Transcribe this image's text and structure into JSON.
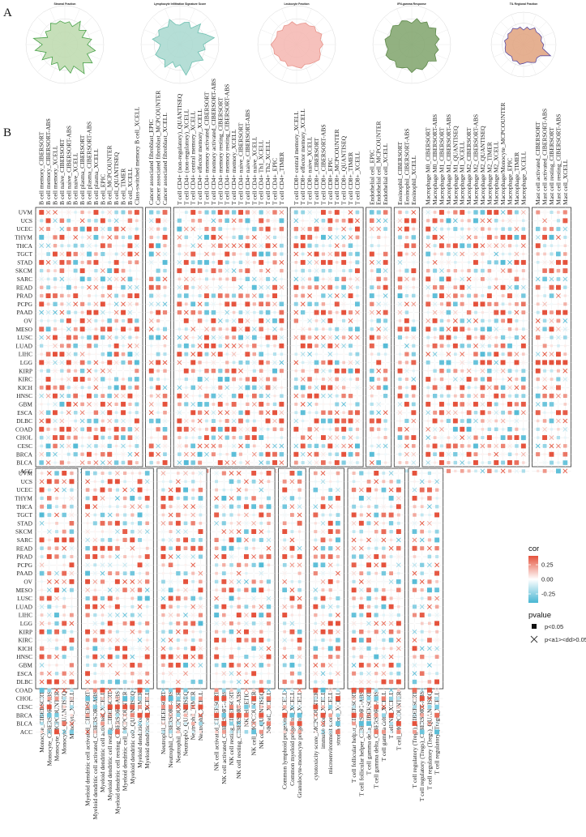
{
  "panel_labels": {
    "a": "A",
    "b": "B"
  },
  "radar_charts": [
    {
      "title": "Stromal Fraction",
      "fill": "#bcd9ad",
      "stroke": "#4aa34a",
      "values": [
        0.55,
        0.6,
        0.5,
        0.72,
        0.52,
        0.66,
        0.48,
        0.7,
        0.58,
        0.8,
        0.62,
        0.85,
        0.66,
        0.9,
        0.6,
        0.75,
        0.55,
        0.68,
        0.5,
        0.62,
        0.45,
        0.7,
        0.52,
        0.78,
        0.58,
        0.82,
        0.48,
        0.6,
        0.52,
        0.66,
        0.58,
        0.62
      ]
    },
    {
      "title": "Lymphocyte Infiltration Signature Score",
      "fill": "#a8d8cf",
      "stroke": "#6cbfb0",
      "values": [
        0.5,
        0.58,
        0.62,
        0.5,
        0.75,
        0.55,
        0.7,
        0.9,
        0.6,
        0.66,
        0.5,
        0.72,
        0.6,
        0.55,
        0.66,
        0.8,
        0.52,
        0.6,
        0.48,
        0.7,
        0.55,
        0.62,
        0.68,
        0.55,
        0.5,
        0.72,
        0.58,
        0.66,
        0.6,
        0.55,
        0.7,
        0.52
      ]
    },
    {
      "title": "Leukocyte Fraction",
      "fill": "#f4b6b0",
      "stroke": "#e8938a",
      "values": [
        0.5,
        0.55,
        0.6,
        0.58,
        0.65,
        0.6,
        0.7,
        0.62,
        0.68,
        0.6,
        0.66,
        0.7,
        0.64,
        0.6,
        0.55,
        0.62,
        0.58,
        0.55,
        0.6,
        0.52,
        0.58,
        0.55,
        0.62,
        0.6,
        0.66,
        0.58,
        0.55,
        0.6,
        0.52,
        0.58,
        0.55,
        0.6
      ]
    },
    {
      "title": "IFN-gamma Response",
      "fill": "#7fa36b",
      "stroke": "#5e8a4b",
      "values": [
        0.55,
        0.68,
        0.6,
        0.7,
        0.62,
        0.75,
        0.66,
        0.72,
        0.6,
        0.7,
        0.64,
        0.76,
        0.6,
        0.66,
        0.7,
        0.62,
        0.72,
        0.6,
        0.65,
        0.7,
        0.6,
        0.68,
        0.72,
        0.62,
        0.66,
        0.7,
        0.6,
        0.64,
        0.68,
        0.6,
        0.66,
        0.62
      ]
    },
    {
      "title": "TIL Regional Fraction",
      "fill": "#e0a27e",
      "stroke": "#5a4aa0",
      "values": [
        0.45,
        0.55,
        0.5,
        0.62,
        0.55,
        0.58,
        0.6,
        0.55,
        0.62,
        0.6,
        0.9,
        0.62,
        0.58,
        0.66,
        0.6,
        0.55,
        0.58,
        0.62,
        0.55,
        0.6,
        0.52,
        0.56,
        0.6,
        0.58,
        0.55,
        0.6,
        0.52,
        0.58,
        0.55,
        0.6,
        0.52,
        0.55
      ]
    }
  ],
  "chart_data": {
    "type": "heatmap",
    "title": "",
    "rows": [
      "UVM",
      "UCS",
      "UCEC",
      "THYM",
      "THCA",
      "TGCT",
      "STAD",
      "SKCM",
      "SARC",
      "READ",
      "PRAD",
      "PCPG",
      "PAAD",
      "OV",
      "MESO",
      "LUSC",
      "LUAD",
      "LIHC",
      "LGG",
      "KIRP",
      "KIRC",
      "KICH",
      "HNSC",
      "GBM",
      "ESCA",
      "DLBC",
      "COAD",
      "CHOL",
      "CESC",
      "BRCA",
      "BLCA",
      "ACC"
    ],
    "rows_bottom": [
      "UVM",
      "UCS",
      "UCEC",
      "THYM",
      "THCA",
      "TGCT",
      "STAD",
      "SKCM",
      "SARC",
      "READ",
      "PRAD",
      "PCPG",
      "PAAD",
      "OV",
      "MESO",
      "LUSC",
      "LUAD",
      "LIHC",
      "LGG",
      "KIRP",
      "KIRC",
      "KICH",
      "HNSC",
      "GBM",
      "ESCA",
      "DLBC",
      "COAD",
      "CHOL",
      "CESC",
      "BRCA",
      "BLCA",
      "ACC"
    ],
    "top_groups": [
      [
        "B cell memory_CIBERSORT",
        "B cell memory_CIBERSORT-ABS",
        "B cell memory_XCELL",
        "B cell naive_CIBERSORT",
        "B cell naive_CIBERSORT-ABS",
        "B cell naive_XCELL",
        "B cell plasma_CIBERSORT",
        "B cell plasma_CIBERSORT-ABS",
        "B cell plasma_XCELL",
        "B cell_EPIC",
        "B cell_MCPCOUNTER",
        "B cell_QUANTISEQ",
        "B cell_TIMER",
        "B cell_XCELL",
        "Class-switched memory B cell_XCELL"
      ],
      [
        "Cancer associated fibroblast_EPIC",
        "Cancer associated fibroblast_MCPCOUNTER",
        "Cancer associated fibroblast_XCELL"
      ],
      [
        "T cell CD4+ (non-regulatory)_QUANTISEQ",
        "T cell CD4+ (non-regulatory)_XCELL",
        "T cell CD4+ central memory_XCELL",
        "T cell CD4+ effector memory_XCELL",
        "T cell CD4+ memory activated_CIBERSORT",
        "T cell CD4+ memory activated_CIBERSORT-ABS",
        "T cell CD4+ memory resting_CIBERSORT",
        "T cell CD4+ memory resting_CIBERSORT-ABS",
        "T cell CD4+ memory_XCELL",
        "T cell CD4+ naive_CIBERSORT",
        "T cell CD4+ naive_CIBERSORT-ABS",
        "T cell CD4+ naive_XCELL",
        "T cell CD4+ Th1_XCELL",
        "T cell CD4+ Th2_XCELL",
        "T cell CD4+_EPIC",
        "T cell CD4+_TIMER"
      ],
      [
        "T cell CD8+ central memory_XCELL",
        "T cell CD8+ effector memory_XCELL",
        "T cell CD8+ naive_XCELL",
        "T cell CD8+_CIBERSORT",
        "T cell CD8+_CIBERSORT-ABS",
        "T cell CD8+_EPIC",
        "T cell CD8+_MCPCOUNTER",
        "T cell CD8+_QUANTISEQ",
        "T cell CD8+_TIMER",
        "T cell CD8+_XCELL"
      ],
      [
        "Endothelial cell_EPIC",
        "Endothelial cell_MCPCOUNTER",
        "Endothelial cell_XCELL"
      ],
      [
        "Eosinophil_CIBERSORT",
        "Eosinophil_CIBERSORT-ABS",
        "Eosinophil_XCELL"
      ],
      [
        "Macrophage M0_CIBERSORT",
        "Macrophage M0_CIBERSORT-ABS",
        "Macrophage M1_CIBERSORT",
        "Macrophage M1_CIBERSORT-ABS",
        "Macrophage M1_QUANTISEQ",
        "Macrophage M1_XCELL",
        "Macrophage M2_CIBERSORT",
        "Macrophage M2_CIBERSORT-ABS",
        "Macrophage M2_QUANTISEQ",
        "Macrophage M2_TIMER",
        "Macrophage M2_XCELL",
        "Macrophage/Monocyte_MCPCOUNTER",
        "Macrophage_EPIC",
        "Macrophage_TIMER",
        "Macrophage_XCELL"
      ],
      [
        "Mast cell activated_CIBERSORT",
        "Mast cell activated_CIBERSORT-ABS",
        "Mast cell resting_CIBERSORT",
        "Mast cell resting_CIBERSORT-ABS",
        "Mast cell_XCELL"
      ]
    ],
    "bottom_groups": [
      [
        "Monocyte_CIBERSORT",
        "Monocyte_CIBERSORT-ABS",
        "Monocyte_MCPCOUNTER",
        "Monocyte_QUANTISEQ",
        "Monocyte_XCELL"
      ],
      [
        "Myeloid dendritic cell activated_CIBERSORT",
        "Myeloid dendritic cell activated_CIBERSORT-ABS",
        "Myeloid dendritic cell activated_XCELL",
        "Myeloid dendritic cell resting_CIBERSORT",
        "Myeloid dendritic cell resting_CIBERSORT-ABS",
        "Myeloid dendritic cell_MCPCOUNTER",
        "Myeloid dendritic cell_QUANTISEQ",
        "Myeloid dendritic cell_TIMER",
        "Myeloid dendritic cell_XCELL"
      ],
      [
        "Neutrophil_CIBERSORT",
        "Neutrophil_CIBERSORT-ABS",
        "Neutrophil_MCPCOUNTER",
        "Neutrophil_QUANTISEQ",
        "Neutrophil_TIMER",
        "Neutrophil_XCELL"
      ],
      [
        "NK cell activated_CIBERSORT",
        "NK cell activated_CIBERSORT-ABS",
        "NK cell resting_CIBERSORT",
        "NK cell resting_CIBERSORT-ABS",
        "NK cell_EPIC",
        "NK cell_MCPCOUNTER",
        "NK cell_QUANTISEQ",
        "NK cell_XCELL"
      ],
      [
        "Common lymphoid progenitor_XCELL",
        "Common myeloid progenitor_XCELL",
        "Granulocyte-monocyte progenitor_XCELL"
      ],
      [
        "cytotoxicity score_MCPCOUNTER",
        "immune score_XCELL",
        "microenvironment score_XCELL",
        "stroma score_XCELL"
      ],
      [
        "T cell follicular helper_CIBERSORT",
        "T cell follicular helper_CIBERSORT-ABS",
        "T cell gamma delta_CIBERSORT",
        "T cell gamma delta_CIBERSORT-ABS",
        "T cell gamma delta_XCELL",
        "T cell NK_XCELL",
        "T cell_MCPCOUNTER"
      ],
      [
        "T cell regulatory (Tregs)_CIBERSORT",
        "T cell regulatory (Tregs)_CIBERSORT-ABS",
        "T cell regulatory (Tregs)_QUANTISEQ",
        "T cell regulatory (Tregs)_XCELL"
      ]
    ],
    "color_scale": {
      "low": "#48b6d3",
      "mid": "#ffffff",
      "high": "#e5523c",
      "range": [
        -0.4,
        0.4
      ]
    },
    "cell_values_note": "correlation values rendered procedurally per cell",
    "legend": {
      "cor_title": "cor",
      "cor_ticks": [
        "0.25",
        "0.00",
        "-0.25"
      ],
      "pvalue_title": "pvalue",
      "pvalue_items": [
        "p<0.05",
        "p<a1><dd>0.05"
      ]
    }
  }
}
